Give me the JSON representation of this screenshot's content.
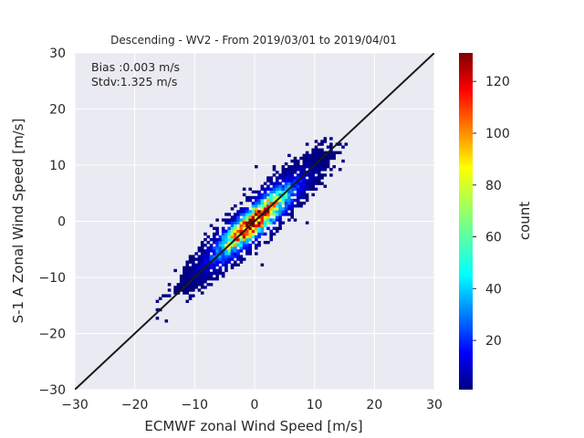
{
  "chart_data": {
    "type": "heatmap",
    "title": "Descending - WV2 - From 2019/03/01 to 2019/04/01",
    "xlabel": "ECMWF zonal Wind Speed [m/s]",
    "ylabel": "S-1 A Zonal Wind Speed [m/s]",
    "xlim": [
      -30,
      30
    ],
    "ylim": [
      -30,
      30
    ],
    "xticks": [
      -30,
      -20,
      -10,
      0,
      10,
      20,
      30
    ],
    "yticks": [
      -30,
      -20,
      -10,
      0,
      10,
      20,
      30
    ],
    "grid": true,
    "annotations": [
      "Bias :0.003 m/s",
      "Stdv:1.325 m/s"
    ],
    "reference_line": {
      "label": "",
      "x": [
        -30,
        30
      ],
      "y": [
        -30,
        30
      ]
    },
    "colorbar": {
      "label": "count",
      "colormap": "jet",
      "min": 1,
      "max": 131,
      "ticks": [
        20,
        40,
        60,
        80,
        100,
        120
      ]
    },
    "bin_width": 0.5,
    "density_model": {
      "x_range": [
        -18,
        16
      ],
      "y_range": [
        -18,
        17
      ],
      "spread_std": 1.3,
      "peak_count": 131
    }
  }
}
